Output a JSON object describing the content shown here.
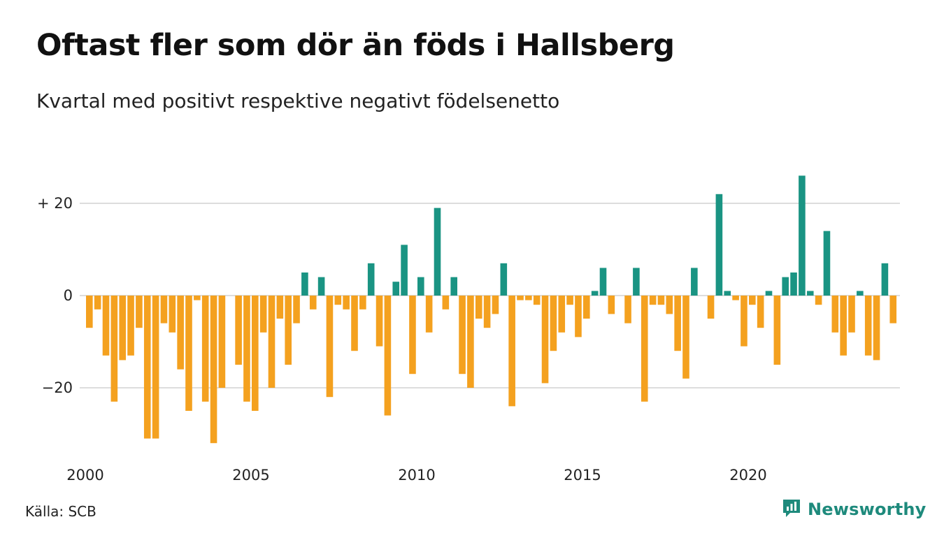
{
  "header": {
    "title": "Oftast fler som dör än föds i Hallsberg",
    "subtitle": "Kvartal med positivt respektive negativt födelsenetto"
  },
  "footer": {
    "source": "Källa: SCB",
    "brand": "Newsworthy",
    "brand_icon": "bar-chart-speech-bubble-icon"
  },
  "colors": {
    "positive": "#1a9483",
    "negative": "#f4a11f",
    "grid": "#dddddd",
    "brand": "#1e8a7c"
  },
  "chart_data": {
    "type": "bar",
    "x_start": 2000,
    "x_step": 0.25,
    "y_tick_values": [
      20,
      0,
      -20
    ],
    "y_tick_labels": [
      "+ 20",
      "0",
      "−20"
    ],
    "x_tick_values": [
      2000,
      2005,
      2010,
      2015,
      2020
    ],
    "x_tick_labels": [
      "2000",
      "2005",
      "2010",
      "2015",
      "2020"
    ],
    "ylim": [
      -33,
      27
    ],
    "xlim": [
      2000,
      2024.75
    ],
    "grid": true,
    "legend": false,
    "values": [
      -7,
      -3,
      -13,
      -23,
      -14,
      -13,
      -7,
      -31,
      -31,
      -6,
      -8,
      -16,
      -25,
      -1,
      -23,
      -32,
      -20,
      0,
      -15,
      -23,
      -25,
      -8,
      -20,
      -5,
      -15,
      -6,
      5,
      -3,
      4,
      -22,
      -2,
      -3,
      -12,
      -3,
      7,
      -11,
      -26,
      3,
      11,
      -17,
      4,
      -8,
      19,
      -3,
      4,
      -17,
      -20,
      -5,
      -7,
      -4,
      7,
      -24,
      -1,
      -1,
      -2,
      -19,
      -12,
      -8,
      -2,
      -9,
      -5,
      1,
      6,
      -4,
      0,
      -6,
      6,
      -23,
      -2,
      -2,
      -4,
      -12,
      -18,
      6,
      0,
      -5,
      22,
      1,
      -1,
      -11,
      -2,
      -7,
      1,
      -15,
      4,
      5,
      26,
      1,
      -2,
      14,
      -8,
      -13,
      -8,
      1,
      -13,
      -14,
      7,
      -6
    ]
  }
}
